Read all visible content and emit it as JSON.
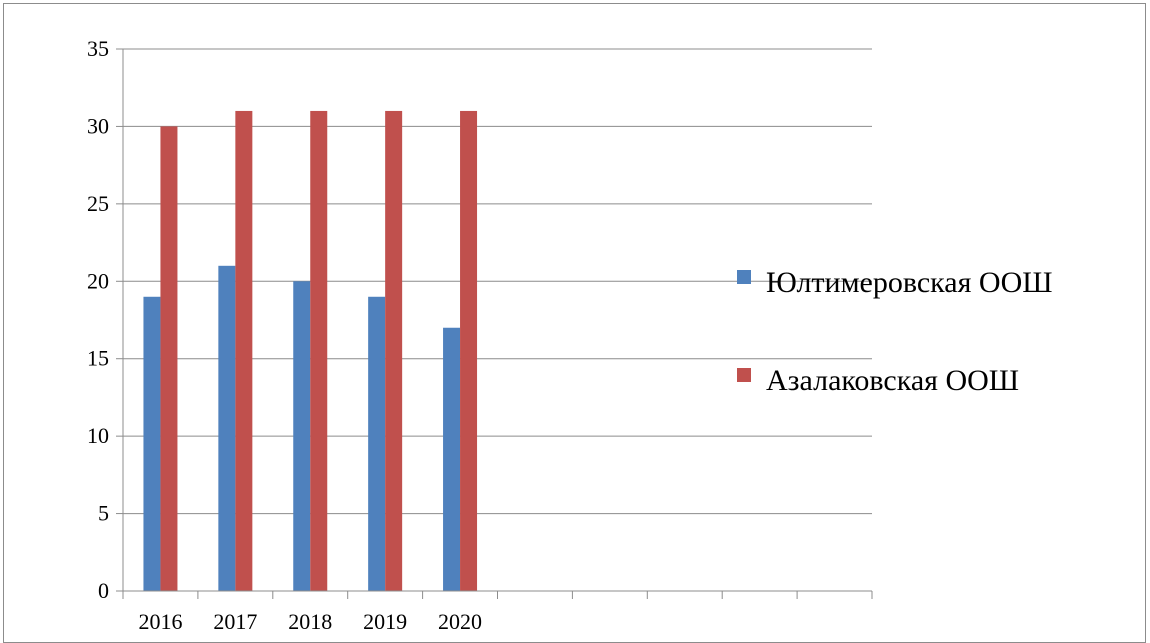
{
  "chart_data": {
    "type": "bar",
    "title": "",
    "xlabel": "",
    "ylabel": "",
    "categories": [
      "2016",
      "2017",
      "2018",
      "2019",
      "2020",
      "",
      "",
      "",
      "",
      ""
    ],
    "series": [
      {
        "name": "Юлтимеровская ООШ",
        "color": "#4f81bd",
        "values": [
          19,
          21,
          20,
          19,
          17,
          null,
          null,
          null,
          null,
          null
        ]
      },
      {
        "name": "Азалаковская ООШ",
        "color": "#c0504d",
        "values": [
          30,
          31,
          31,
          31,
          31,
          null,
          null,
          null,
          null,
          null
        ]
      }
    ],
    "ylim": [
      0,
      35
    ],
    "yticks": [
      0,
      5,
      10,
      15,
      20,
      25,
      30,
      35
    ],
    "grid": true,
    "legend_position": "right"
  }
}
